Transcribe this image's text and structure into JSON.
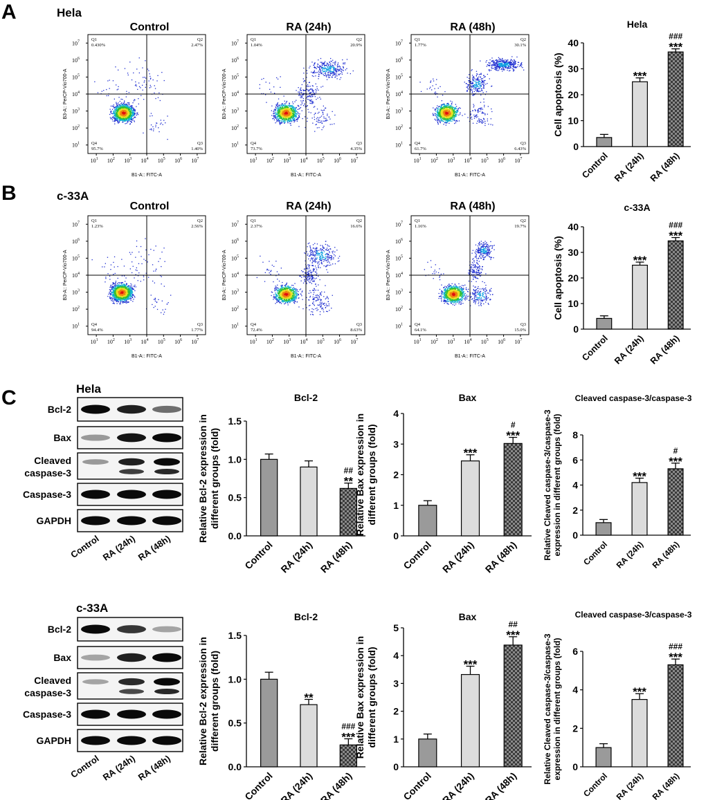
{
  "panel_labels": [
    "A",
    "B",
    "C"
  ],
  "rows": [
    {
      "cell_line": "Hela",
      "titles": [
        "Control",
        "RA (24h)",
        "RA (48h)"
      ]
    },
    {
      "cell_line": "c-33A",
      "titles": [
        "Control",
        "RA (24h)",
        "RA (48h)"
      ]
    }
  ],
  "flow": {
    "x_label": "B1-A:: FITC-A",
    "y_label": "B3-A:: PerCP-Vio700-A",
    "tick_exponents": [
      "1",
      "2",
      "3",
      "4",
      "5",
      "6",
      "7"
    ],
    "tick_base": "10",
    "quadrant_names": [
      "Q1",
      "Q2",
      "Q3",
      "Q4"
    ],
    "plots": [
      {
        "q1": "0.430%",
        "q2": "2.47%",
        "q3": "1.40%",
        "q4": "95.7%",
        "pattern": "control"
      },
      {
        "q1": "1.04%",
        "q2": "20.9%",
        "q3": "4.35%",
        "q4": "73.7%",
        "pattern": "ra24"
      },
      {
        "q1": "1.77%",
        "q2": "30.1%",
        "q3": "6.43%",
        "q4": "61.7%",
        "pattern": "ra48"
      },
      {
        "q1": "1.23%",
        "q2": "2.56%",
        "q3": "1.77%",
        "q4": "94.4%",
        "pattern": "control"
      },
      {
        "q1": "2.37%",
        "q2": "16.6%",
        "q3": "8.63%",
        "q4": "72.4%",
        "pattern": "ra24"
      },
      {
        "q1": "1.16%",
        "q2": "19.7%",
        "q3": "15.0%",
        "q4": "64.1%",
        "pattern": "ra48"
      }
    ]
  },
  "western": {
    "hela_label": "Hela",
    "c33a_label": "c-33A",
    "lanes": [
      "Control",
      "RA (24h)",
      "RA (48h)"
    ],
    "bands": [
      {
        "name": "Bcl-2",
        "lines": [
          "Bcl-2"
        ]
      },
      {
        "name": "Bax",
        "lines": [
          "Bax"
        ]
      },
      {
        "name": "Cleaved caspase-3",
        "lines": [
          "Cleaved",
          "caspase-3"
        ]
      },
      {
        "name": "Caspase-3",
        "lines": [
          "Caspase-3"
        ]
      },
      {
        "name": "GAPDH",
        "lines": [
          "GAPDH"
        ]
      }
    ],
    "hela_intensity": [
      [
        1.0,
        0.9,
        0.55
      ],
      [
        0.35,
        0.95,
        1.0
      ],
      [
        0.35,
        0.9,
        1.0
      ],
      [
        1.0,
        1.0,
        1.0
      ],
      [
        1.0,
        1.0,
        1.0
      ]
    ],
    "c33a_intensity": [
      [
        1.0,
        0.8,
        0.3
      ],
      [
        0.3,
        0.9,
        1.0
      ],
      [
        0.3,
        0.85,
        1.0
      ],
      [
        1.0,
        1.0,
        1.0
      ],
      [
        1.0,
        1.0,
        1.0
      ]
    ]
  },
  "chart_data": [
    {
      "id": "hela-apoptosis",
      "type": "bar",
      "title": "Hela",
      "categories": [
        "Control",
        "RA (24h)",
        "RA (48h)"
      ],
      "values": [
        3.5,
        25,
        36.5
      ],
      "errors": [
        1.2,
        1.5,
        1.2
      ],
      "ylabel": "Cell apoptosis (%)",
      "ylim": [
        0,
        40
      ],
      "yticks": [
        "0",
        "10",
        "20",
        "30",
        "40"
      ],
      "annotations": [
        [],
        [
          "***"
        ],
        [
          "###",
          "***"
        ]
      ]
    },
    {
      "id": "c33a-apoptosis",
      "type": "bar",
      "title": "c-33A",
      "categories": [
        "Control",
        "RA (24h)",
        "RA (48h)"
      ],
      "values": [
        4.2,
        25,
        34.5
      ],
      "errors": [
        1.0,
        1.2,
        1.3
      ],
      "ylabel": "Cell apoptosis (%)",
      "ylim": [
        0,
        40
      ],
      "yticks": [
        "0",
        "10",
        "20",
        "30",
        "40"
      ],
      "annotations": [
        [],
        [
          "***"
        ],
        [
          "###",
          "***"
        ]
      ]
    },
    {
      "id": "hela-bcl2",
      "type": "bar",
      "title": "Bcl-2",
      "categories": [
        "Control",
        "RA (24h)",
        "RA (48h)"
      ],
      "values": [
        1.0,
        0.9,
        0.62
      ],
      "errors": [
        0.07,
        0.08,
        0.07
      ],
      "ylabel_lines": [
        "Relative Bcl-2 expression in",
        "different groups (fold)"
      ],
      "ylim": [
        0,
        1.5
      ],
      "yticks": [
        "0.0",
        "0.5",
        "1.0",
        "1.5"
      ],
      "annotations": [
        [],
        [],
        [
          "##",
          "**"
        ]
      ]
    },
    {
      "id": "hela-bax",
      "type": "bar",
      "title": "Bax",
      "categories": [
        "Control",
        "RA (24h)",
        "RA (48h)"
      ],
      "values": [
        1.0,
        2.45,
        3.02
      ],
      "errors": [
        0.15,
        0.2,
        0.2
      ],
      "ylabel_lines": [
        "Relative Bax expression in",
        "different groups (fold)"
      ],
      "ylim": [
        0,
        4
      ],
      "yticks": [
        "0",
        "1",
        "2",
        "3",
        "4"
      ],
      "annotations": [
        [],
        [
          "***"
        ],
        [
          "#",
          "***"
        ]
      ]
    },
    {
      "id": "hela-cleaved",
      "type": "bar",
      "title": "Cleaved caspase-3/caspase-3",
      "categories": [
        "Control",
        "RA (24h)",
        "RA (48h)"
      ],
      "values": [
        1.0,
        4.2,
        5.3
      ],
      "errors": [
        0.25,
        0.35,
        0.45
      ],
      "ylabel_lines": [
        "Relative Cleaved caspase-3/caspase-3",
        "expression in different groups (fold)"
      ],
      "ylim": [
        0,
        8
      ],
      "yticks": [
        "0",
        "2",
        "4",
        "6",
        "8"
      ],
      "annotations": [
        [],
        [
          "***"
        ],
        [
          "#",
          "***"
        ]
      ]
    },
    {
      "id": "c33a-bcl2",
      "type": "bar",
      "title": "Bcl-2",
      "categories": [
        "Control",
        "RA (24h)",
        "RA (48h)"
      ],
      "values": [
        1.0,
        0.71,
        0.25
      ],
      "errors": [
        0.08,
        0.06,
        0.07
      ],
      "ylabel_lines": [
        "Relative Bcl-2 expression in",
        "different groups (fold)"
      ],
      "ylim": [
        0,
        1.5
      ],
      "yticks": [
        "0.0",
        "0.5",
        "1.0",
        "1.5"
      ],
      "annotations": [
        [],
        [
          "**"
        ],
        [
          "###",
          "***"
        ]
      ]
    },
    {
      "id": "c33a-bax",
      "type": "bar",
      "title": "Bax",
      "categories": [
        "Control",
        "RA (24h)",
        "RA (48h)"
      ],
      "values": [
        1.0,
        3.32,
        4.38
      ],
      "errors": [
        0.18,
        0.3,
        0.3
      ],
      "ylabel_lines": [
        "Relative Bax expression in",
        "different groups (fold)"
      ],
      "ylim": [
        0,
        5
      ],
      "yticks": [
        "0",
        "1",
        "2",
        "3",
        "4",
        "5"
      ],
      "annotations": [
        [],
        [
          "***"
        ],
        [
          "##",
          "***"
        ]
      ]
    },
    {
      "id": "c33a-cleaved",
      "type": "bar",
      "title": "Cleaved caspase-3/caspase-3",
      "categories": [
        "Control",
        "RA (24h)",
        "RA (48h)"
      ],
      "values": [
        1.0,
        3.5,
        5.3
      ],
      "errors": [
        0.2,
        0.3,
        0.3
      ],
      "ylabel_lines": [
        "Relative Cleaved caspase-3/caspase-3",
        "expression in different groups (fold)"
      ],
      "ylim": [
        0,
        6
      ],
      "yticks": [
        "0",
        "2",
        "4",
        "6"
      ],
      "annotations": [
        [],
        [
          "***"
        ],
        [
          "###",
          "***"
        ]
      ]
    }
  ]
}
